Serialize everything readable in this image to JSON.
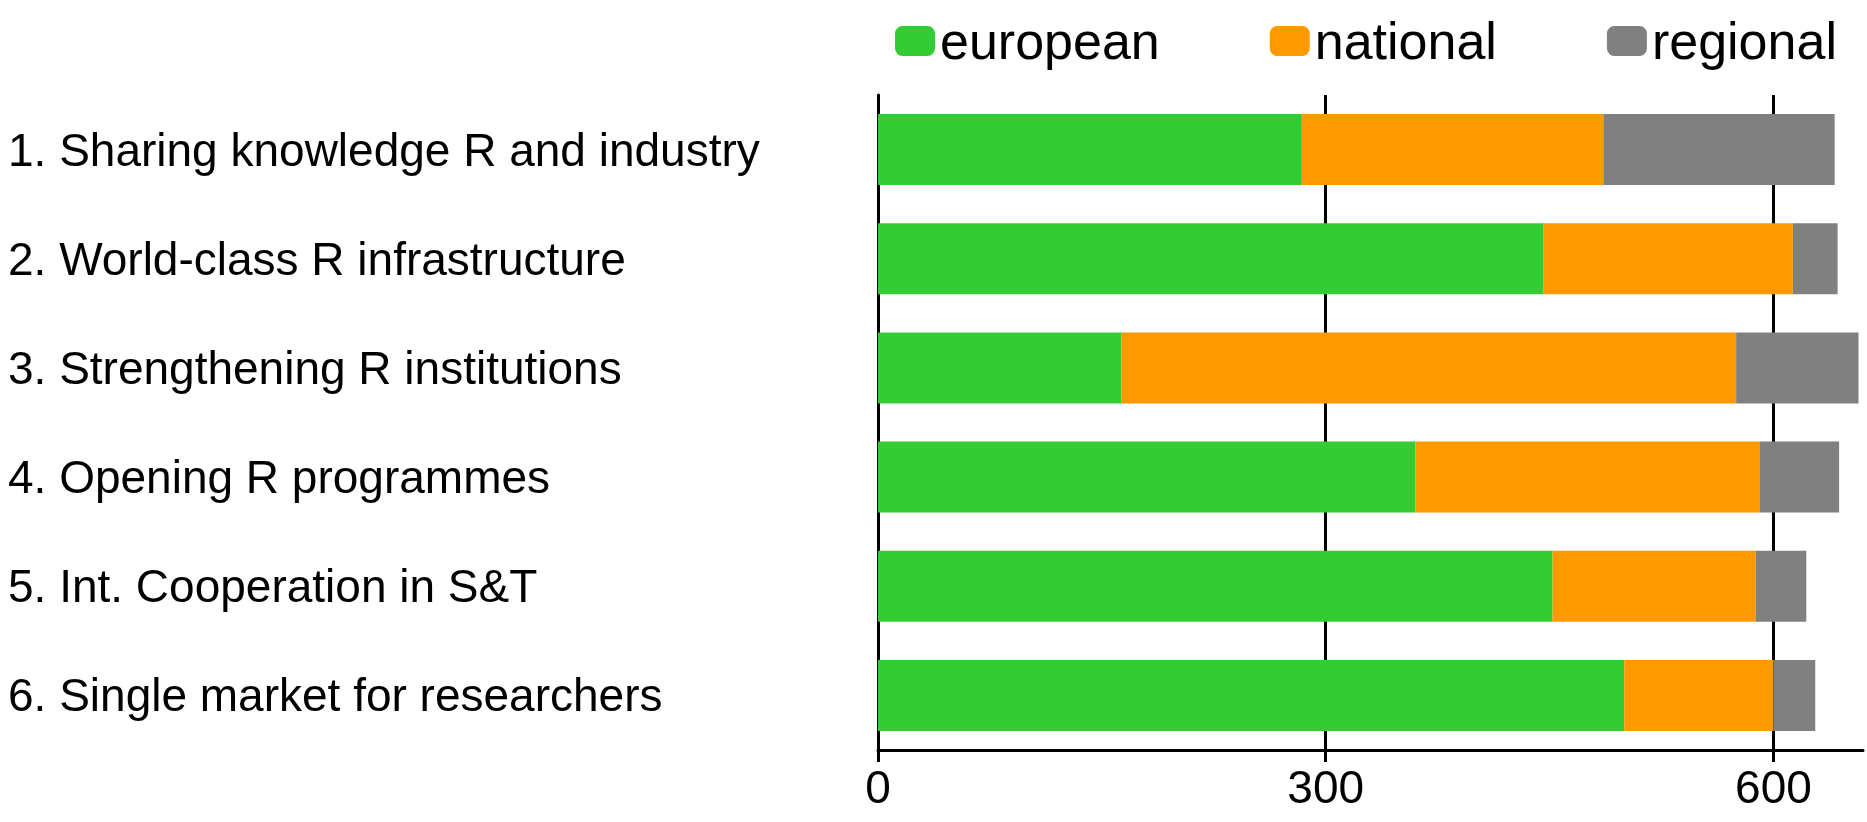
{
  "chart_data": {
    "type": "bar",
    "orientation": "horizontal",
    "stacked": true,
    "categories": [
      "1. Sharing knowledge R and industry",
      "2. World-class R infrastructure",
      "3. Strengthening R institutions",
      "4. Opening R programmes",
      "5. Int. Cooperation in S&T",
      "6. Single market for researchers"
    ],
    "series": [
      {
        "name": "european",
        "color": "#33cc33",
        "values": [
          284,
          446,
          163,
          360,
          452,
          500
        ]
      },
      {
        "name": "national",
        "color": "#ff9900",
        "values": [
          202,
          167,
          412,
          231,
          136,
          100
        ]
      },
      {
        "name": "regional",
        "color": "#808080",
        "values": [
          155,
          30,
          82,
          53,
          34,
          28
        ]
      }
    ],
    "xlim": [
      0,
      660
    ],
    "xticks": [
      0,
      300,
      600
    ],
    "grid": "x",
    "legend": "top"
  }
}
